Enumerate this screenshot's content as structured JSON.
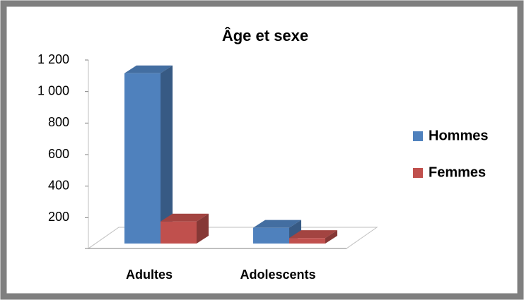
{
  "chart_data": {
    "type": "bar3d",
    "title": "Âge et sexe",
    "categories": [
      "Adultes",
      "Adolescents"
    ],
    "series": [
      {
        "name": "Hommes",
        "color": "#4f81bd",
        "values": [
          1080,
          100
        ]
      },
      {
        "name": "Femmes",
        "color": "#c0504d",
        "values": [
          140,
          35
        ]
      }
    ],
    "ylim": [
      0,
      1200
    ],
    "yticks": [
      200,
      400,
      600,
      800,
      {
        "value": 1000,
        "label": "1 000"
      },
      {
        "value": 1200,
        "label": "1 200"
      }
    ],
    "legend": "right"
  }
}
